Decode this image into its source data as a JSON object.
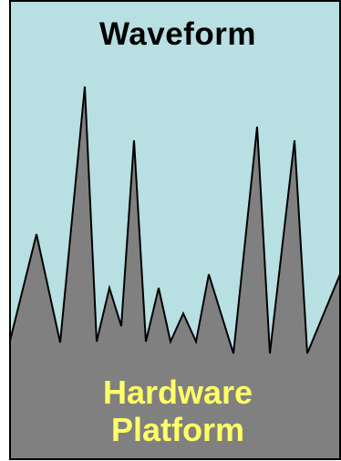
{
  "diagram": {
    "title": "Waveform",
    "platform_line1": "Hardware",
    "platform_line2": "Platform"
  },
  "colors": {
    "sky": "#b8dfe2",
    "waveform_fill": "#808080",
    "outline": "#000000",
    "title_text": "#000000",
    "platform_text": "#ffff66"
  }
}
